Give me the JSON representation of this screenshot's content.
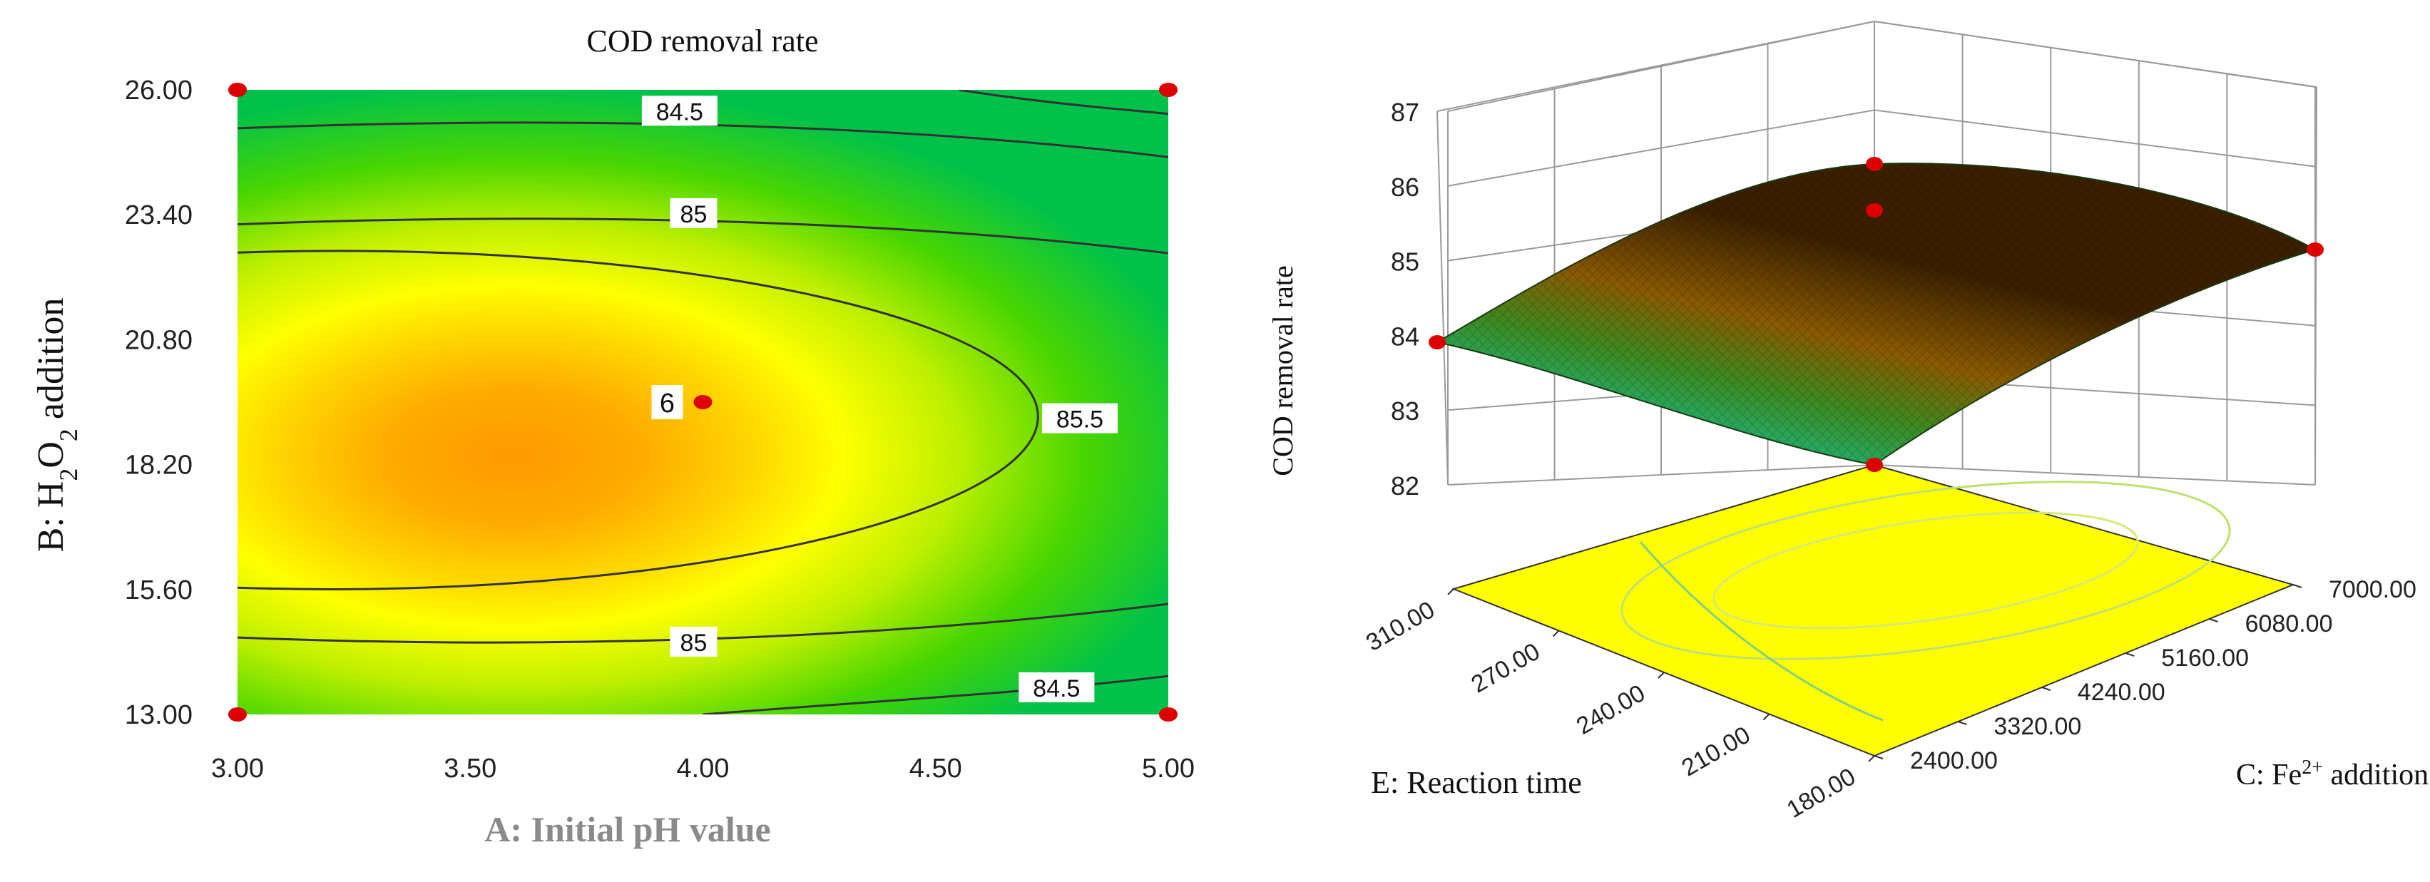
{
  "chart_data": [
    {
      "type": "contour",
      "title": "COD removal rate",
      "xlabel": "A: Initial pH value",
      "ylabel": "B: H2O2 addition",
      "ylabel_main": "B: H",
      "ylabel_sub1": "2",
      "ylabel_mid": "O",
      "ylabel_sub2": "2",
      "ylabel_tail": " addition",
      "xlim": [
        3.0,
        5.0
      ],
      "ylim": [
        13.0,
        26.0
      ],
      "x_ticks": [
        "3.00",
        "3.50",
        "4.00",
        "4.50",
        "5.00"
      ],
      "y_ticks": [
        "13.00",
        "15.60",
        "18.20",
        "20.80",
        "23.40",
        "26.00"
      ],
      "optimum": {
        "x": 3.45,
        "y": 19.2
      },
      "contours": [
        {
          "level": 84.5,
          "label": "84.5"
        },
        {
          "level": 85,
          "label": "85"
        },
        {
          "level": 85.5,
          "label": "85.5"
        }
      ],
      "center_point": {
        "x": 4.0,
        "y": 19.5,
        "label": "6"
      },
      "corner_points": [
        {
          "x": 3.0,
          "y": 13.0
        },
        {
          "x": 5.0,
          "y": 13.0
        },
        {
          "x": 3.0,
          "y": 26.0
        },
        {
          "x": 5.0,
          "y": 26.0
        }
      ],
      "colors": {
        "high": "#ff9900",
        "mid": "#ffff00",
        "low": "#00cc00",
        "contour": "#333333",
        "point": "#dd0000"
      }
    },
    {
      "type": "surface3d",
      "zlabel": "COD removal rate",
      "xlabel": "C: Fe2+ addition",
      "xlabel_main": "C: Fe",
      "xlabel_sup": "2+",
      "xlabel_tail": " addition",
      "ylabel": "E: Reaction time",
      "zlim": [
        82,
        87
      ],
      "z_ticks": [
        "82",
        "83",
        "84",
        "85",
        "86",
        "87"
      ],
      "c_range": [
        2400,
        7000
      ],
      "c_ticks": [
        "2400.00",
        "3320.00",
        "4240.00",
        "5160.00",
        "6080.00",
        "7000.00"
      ],
      "e_range": [
        180,
        310
      ],
      "e_ticks": [
        "180.00",
        "210.00",
        "240.00",
        "270.00",
        "310.00"
      ],
      "surface_points": [
        {
          "c": 2400,
          "e": 180,
          "z": 82.0
        },
        {
          "c": 2400,
          "e": 310,
          "z": 84.0
        },
        {
          "c": 7000,
          "e": 310,
          "z": 86.5
        },
        {
          "c": 7000,
          "e": 180,
          "z": 85.0
        },
        {
          "c": 4700,
          "e": 245,
          "z": 86.0
        }
      ],
      "colors": {
        "surface_high": "#5a3a00",
        "surface_low": "#40c8b4",
        "floor": "#ffff00",
        "grid": "#9a9a9a",
        "point": "#dd0000"
      }
    }
  ]
}
